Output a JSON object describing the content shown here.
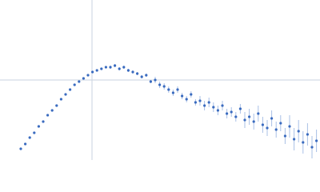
{
  "chart_data": {
    "type": "scatter",
    "x": [
      0.065,
      0.079,
      0.093,
      0.107,
      0.121,
      0.135,
      0.149,
      0.163,
      0.177,
      0.191,
      0.205,
      0.219,
      0.233,
      0.247,
      0.261,
      0.275,
      0.289,
      0.303,
      0.317,
      0.331,
      0.345,
      0.359,
      0.373,
      0.387,
      0.401,
      0.415,
      0.429,
      0.443,
      0.457,
      0.471,
      0.485,
      0.499,
      0.513,
      0.527,
      0.541,
      0.555,
      0.569,
      0.583,
      0.597,
      0.611,
      0.625,
      0.639,
      0.653,
      0.667,
      0.681,
      0.695,
      0.709,
      0.723,
      0.737,
      0.751,
      0.765,
      0.779,
      0.793,
      0.807,
      0.821,
      0.835,
      0.849,
      0.863,
      0.877,
      0.891,
      0.905,
      0.919,
      0.933,
      0.947,
      0.961,
      0.975,
      0.989
    ],
    "series": [
      {
        "color": "#3a6bbf",
        "error_color": "#a9c0e6",
        "values": [
          0.07,
          0.1,
          0.14,
          0.17,
          0.21,
          0.24,
          0.28,
          0.31,
          0.34,
          0.38,
          0.41,
          0.44,
          0.47,
          0.49,
          0.51,
          0.53,
          0.55,
          0.56,
          0.57,
          0.58,
          0.58,
          0.59,
          0.57,
          0.58,
          0.56,
          0.55,
          0.54,
          0.52,
          0.53,
          0.49,
          0.5,
          0.47,
          0.46,
          0.44,
          0.42,
          0.44,
          0.4,
          0.38,
          0.41,
          0.36,
          0.37,
          0.34,
          0.36,
          0.33,
          0.31,
          0.34,
          0.29,
          0.3,
          0.27,
          0.32,
          0.25,
          0.27,
          0.24,
          0.29,
          0.22,
          0.2,
          0.26,
          0.19,
          0.23,
          0.15,
          0.21,
          0.13,
          0.18,
          0.11,
          0.16,
          0.08,
          0.12
        ],
        "errors": [
          0.004,
          0.004,
          0.004,
          0.004,
          0.004,
          0.004,
          0.004,
          0.004,
          0.004,
          0.004,
          0.004,
          0.004,
          0.004,
          0.004,
          0.004,
          0.004,
          0.004,
          0.004,
          0.004,
          0.004,
          0.01,
          0.01,
          0.01,
          0.01,
          0.01,
          0.01,
          0.01,
          0.01,
          0.01,
          0.01,
          0.02,
          0.02,
          0.02,
          0.02,
          0.02,
          0.02,
          0.02,
          0.02,
          0.02,
          0.02,
          0.03,
          0.03,
          0.03,
          0.03,
          0.03,
          0.03,
          0.03,
          0.03,
          0.03,
          0.03,
          0.05,
          0.05,
          0.05,
          0.05,
          0.05,
          0.05,
          0.05,
          0.05,
          0.05,
          0.05,
          0.07,
          0.07,
          0.07,
          0.07,
          0.07,
          0.07,
          0.07
        ]
      }
    ],
    "xlim": [
      0,
      1
    ],
    "ylim": [
      0,
      1
    ],
    "xticks": [
      0.2875
    ],
    "yticks": [
      0.5
    ],
    "grid": true,
    "grid_color": "#c9d3e0",
    "tick_labels": false
  }
}
